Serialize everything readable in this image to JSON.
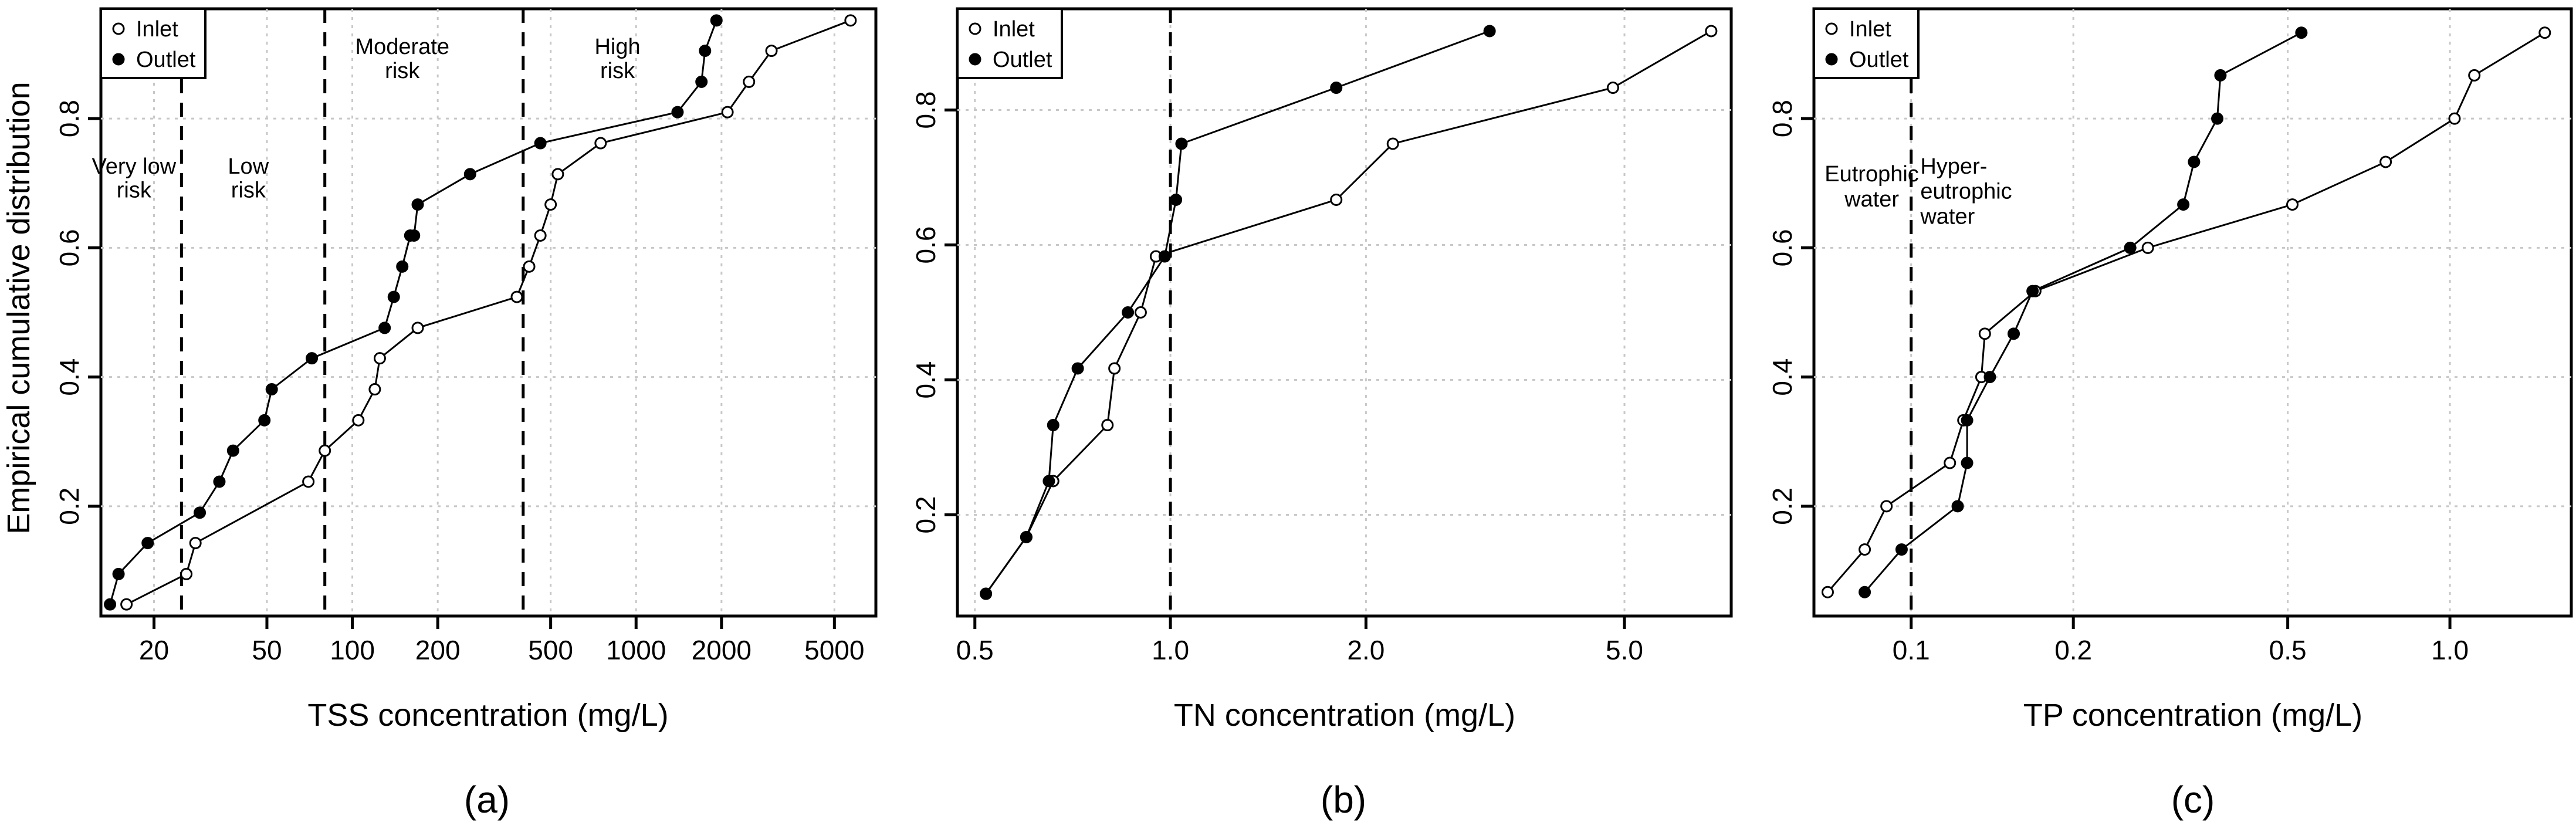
{
  "figure": {
    "ylabel": "Empirical cumulative distribution"
  },
  "chart_data": [
    {
      "type": "line",
      "panel_label": "(a)",
      "xlabel": "TSS concentration (mg/L)",
      "ylabel": "Empirical cumulative distribution",
      "xscale": "log",
      "xlim": [
        13,
        7000
      ],
      "ylim": [
        0.03,
        0.97
      ],
      "xticks": [
        20,
        50,
        100,
        200,
        500,
        1000,
        2000,
        5000
      ],
      "xtick_labels": [
        "20",
        "50",
        "100",
        "200",
        "500",
        "1000",
        "2000",
        "5000"
      ],
      "yticks": [
        0.2,
        0.4,
        0.6,
        0.8
      ],
      "ytick_labels": [
        "0.2",
        "0.4",
        "0.6",
        "0.8"
      ],
      "grid": true,
      "legend": {
        "position": "top-left",
        "entries": [
          "Inlet",
          "Outlet"
        ]
      },
      "thresholds": [
        25,
        80,
        400
      ],
      "annotations": [
        {
          "text": "Very low",
          "x": 17,
          "y": 0.715,
          "anchor": "middle"
        },
        {
          "text": "risk",
          "x": 17,
          "y": 0.678,
          "anchor": "middle"
        },
        {
          "text": "Low",
          "x": 43,
          "y": 0.715,
          "anchor": "middle"
        },
        {
          "text": "risk",
          "x": 43,
          "y": 0.678,
          "anchor": "middle"
        },
        {
          "text": "Moderate",
          "x": 150,
          "y": 0.9,
          "anchor": "middle"
        },
        {
          "text": "risk",
          "x": 150,
          "y": 0.863,
          "anchor": "middle"
        },
        {
          "text": "High",
          "x": 860,
          "y": 0.9,
          "anchor": "middle"
        },
        {
          "text": "risk",
          "x": 860,
          "y": 0.863,
          "anchor": "middle"
        }
      ],
      "series": [
        {
          "name": "Inlet",
          "marker": "open",
          "x": [
            16,
            26,
            28,
            70,
            80,
            105,
            120,
            125,
            170,
            380,
            420,
            460,
            500,
            530,
            750,
            2100,
            2500,
            3000,
            5700
          ],
          "y": [
            0.048,
            0.095,
            0.143,
            0.238,
            0.286,
            0.333,
            0.381,
            0.429,
            0.476,
            0.524,
            0.571,
            0.619,
            0.667,
            0.714,
            0.762,
            0.81,
            0.857,
            0.905,
            0.952
          ]
        },
        {
          "name": "Outlet",
          "marker": "filled",
          "x": [
            14,
            15,
            19,
            29,
            34,
            38,
            49,
            52,
            72,
            130,
            140,
            150,
            160,
            165,
            170,
            260,
            460,
            1400,
            1700,
            1750,
            1920
          ],
          "y": [
            0.048,
            0.095,
            0.143,
            0.19,
            0.238,
            0.286,
            0.333,
            0.381,
            0.429,
            0.476,
            0.524,
            0.571,
            0.619,
            0.619,
            0.667,
            0.714,
            0.762,
            0.81,
            0.857,
            0.905,
            0.952
          ]
        }
      ]
    },
    {
      "type": "line",
      "panel_label": "(b)",
      "xlabel": "TN concentration (mg/L)",
      "xscale": "log",
      "xlim": [
        0.47,
        7.3
      ],
      "ylim": [
        0.05,
        0.95
      ],
      "xticks": [
        0.5,
        1.0,
        2.0,
        5.0
      ],
      "xtick_labels": [
        "0.5",
        "1.0",
        "2.0",
        "5.0"
      ],
      "yticks": [
        0.2,
        0.4,
        0.6,
        0.8
      ],
      "ytick_labels": [
        "0.2",
        "0.4",
        "0.6",
        "0.8"
      ],
      "grid": true,
      "legend": {
        "position": "top-left",
        "entries": [
          "Inlet",
          "Outlet"
        ]
      },
      "thresholds": [
        1.0
      ],
      "annotations": [],
      "series": [
        {
          "name": "Inlet",
          "marker": "open",
          "x": [
            0.52,
            0.6,
            0.66,
            0.8,
            0.82,
            0.9,
            0.95,
            1.8,
            2.2,
            4.8,
            6.8
          ],
          "y": [
            0.083,
            0.167,
            0.25,
            0.333,
            0.417,
            0.5,
            0.583,
            0.667,
            0.75,
            0.833,
            0.917
          ]
        },
        {
          "name": "Outlet",
          "marker": "filled",
          "x": [
            0.52,
            0.6,
            0.65,
            0.66,
            0.72,
            0.86,
            0.98,
            1.02,
            1.04,
            1.8,
            3.1
          ],
          "y": [
            0.083,
            0.167,
            0.25,
            0.333,
            0.417,
            0.5,
            0.583,
            0.667,
            0.75,
            0.833,
            0.917
          ]
        }
      ]
    },
    {
      "type": "line",
      "panel_label": "(c)",
      "xlabel": "TP concentration (mg/L)",
      "xscale": "log",
      "xlim": [
        0.066,
        1.68
      ],
      "ylim": [
        0.03,
        0.97
      ],
      "xticks": [
        0.1,
        0.2,
        0.5,
        1.0
      ],
      "xtick_labels": [
        "0.1",
        "0.2",
        "0.5",
        "1.0"
      ],
      "yticks": [
        0.2,
        0.4,
        0.6,
        0.8
      ],
      "ytick_labels": [
        "0.2",
        "0.4",
        "0.6",
        "0.8"
      ],
      "grid": true,
      "legend": {
        "position": "top-left",
        "entries": [
          "Inlet",
          "Outlet"
        ]
      },
      "thresholds": [
        0.1
      ],
      "annotations": [
        {
          "text": "Eutrophic",
          "x": 0.0845,
          "y": 0.703,
          "anchor": "middle"
        },
        {
          "text": "water",
          "x": 0.0845,
          "y": 0.664,
          "anchor": "middle"
        },
        {
          "text": "Hyper-",
          "x": 0.104,
          "y": 0.715,
          "anchor": "start"
        },
        {
          "text": "eutrophic",
          "x": 0.104,
          "y": 0.676,
          "anchor": "start"
        },
        {
          "text": "water",
          "x": 0.104,
          "y": 0.637,
          "anchor": "start"
        }
      ],
      "series": [
        {
          "name": "Inlet",
          "marker": "open",
          "x": [
            0.07,
            0.082,
            0.09,
            0.118,
            0.125,
            0.135,
            0.137,
            0.17,
            0.275,
            0.51,
            0.76,
            1.02,
            1.11,
            1.5
          ],
          "y": [
            0.067,
            0.133,
            0.2,
            0.267,
            0.333,
            0.4,
            0.467,
            0.533,
            0.6,
            0.667,
            0.733,
            0.8,
            0.867,
            0.933
          ]
        },
        {
          "name": "Outlet",
          "marker": "filled",
          "x": [
            0.082,
            0.096,
            0.122,
            0.127,
            0.127,
            0.14,
            0.155,
            0.168,
            0.255,
            0.32,
            0.335,
            0.37,
            0.375,
            0.53
          ],
          "y": [
            0.067,
            0.133,
            0.2,
            0.267,
            0.333,
            0.4,
            0.467,
            0.533,
            0.6,
            0.667,
            0.733,
            0.8,
            0.867,
            0.933
          ]
        }
      ]
    }
  ]
}
